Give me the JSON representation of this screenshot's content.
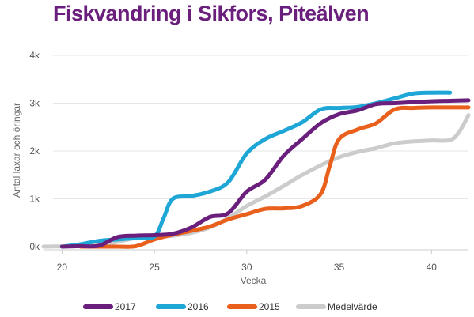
{
  "chart_data": {
    "type": "line",
    "title": "Fiskvandring i Sikfors, Piteälven",
    "xlabel": "Vecka",
    "ylabel": "Antal laxar och öringar",
    "xlim": [
      19,
      42
    ],
    "ylim": [
      0,
      4000
    ],
    "x_ticks": [
      20,
      25,
      30,
      35,
      40
    ],
    "y_ticks": [
      {
        "value": 0,
        "label": "0k"
      },
      {
        "value": 1000,
        "label": "1k"
      },
      {
        "value": 2000,
        "label": "2k"
      },
      {
        "value": 3000,
        "label": "3k"
      },
      {
        "value": 4000,
        "label": "4k"
      }
    ],
    "grid": "horizontal",
    "legend_position": "bottom",
    "series": [
      {
        "name": "Medelvärde",
        "color": "#cccccc",
        "x": [
          19,
          20,
          21,
          22,
          23,
          24,
          25,
          26,
          27,
          28,
          29,
          30,
          31,
          32,
          33,
          34,
          35,
          36,
          37,
          38,
          39,
          40,
          41,
          41.5,
          42
        ],
        "y": [
          0,
          5,
          10,
          30,
          100,
          180,
          200,
          230,
          290,
          400,
          600,
          850,
          1050,
          1270,
          1500,
          1700,
          1870,
          1980,
          2060,
          2160,
          2200,
          2220,
          2230,
          2400,
          2750
        ]
      },
      {
        "name": "2015",
        "color": "#e8601c",
        "x": [
          21,
          22,
          23,
          24,
          25,
          26,
          27,
          28,
          29,
          30,
          31,
          32,
          33,
          34,
          34.5,
          35,
          36,
          37,
          38,
          39,
          40,
          41,
          42
        ],
        "y": [
          0,
          0,
          0,
          10,
          150,
          250,
          330,
          420,
          570,
          680,
          790,
          800,
          850,
          1100,
          1700,
          2250,
          2450,
          2580,
          2870,
          2900,
          2910,
          2910,
          2910
        ]
      },
      {
        "name": "2016",
        "color": "#1ea6d6",
        "x": [
          20,
          21,
          22,
          23,
          24,
          25,
          25.5,
          26,
          27,
          28,
          29,
          30,
          31,
          32,
          33,
          34,
          35,
          36,
          37,
          38,
          39,
          40,
          41
        ],
        "y": [
          0,
          50,
          120,
          150,
          180,
          210,
          600,
          1000,
          1060,
          1150,
          1350,
          1950,
          2250,
          2420,
          2600,
          2870,
          2900,
          2920,
          3000,
          3100,
          3200,
          3220,
          3220
        ]
      },
      {
        "name": "2017",
        "color": "#6b1f7c",
        "x": [
          20,
          21,
          22,
          23,
          24,
          25,
          26,
          27,
          28,
          29,
          30,
          31,
          32,
          33,
          34,
          35,
          36,
          37,
          38,
          39,
          40,
          41,
          42
        ],
        "y": [
          0,
          10,
          20,
          200,
          230,
          240,
          270,
          400,
          620,
          700,
          1150,
          1400,
          1900,
          2250,
          2580,
          2770,
          2850,
          2980,
          3000,
          3020,
          3040,
          3050,
          3060
        ]
      }
    ],
    "legend_order": [
      "2017",
      "2016",
      "2015",
      "Medelvärde"
    ]
  }
}
